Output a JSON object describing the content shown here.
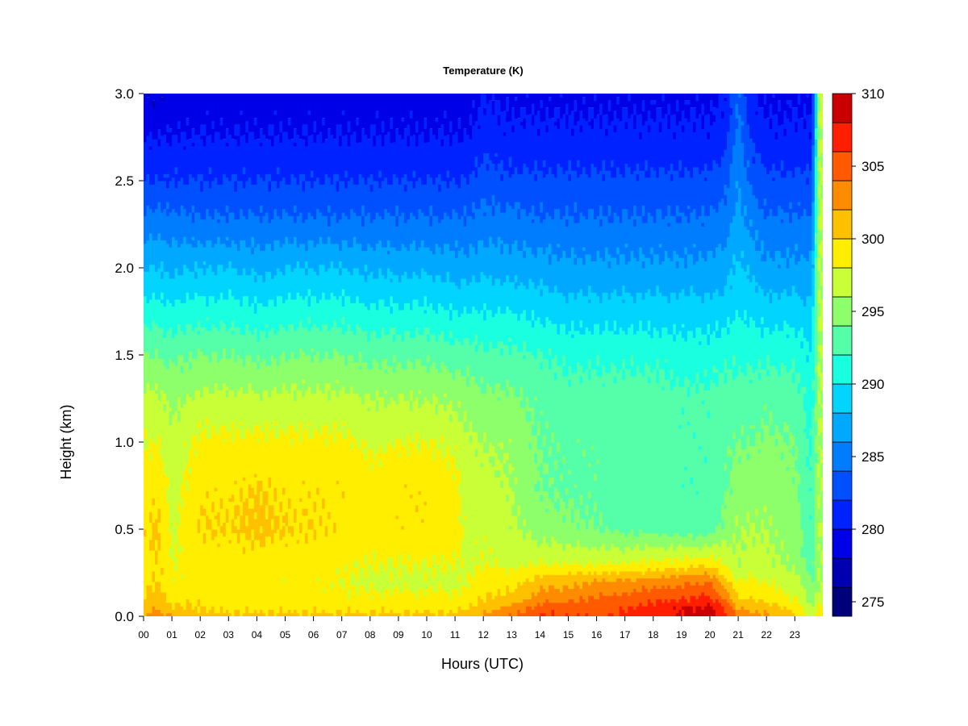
{
  "chart_data": {
    "type": "heatmap",
    "title": "Temperature (K)",
    "xlabel": "Hours (UTC)",
    "ylabel": "Height (km)",
    "x_ticks": [
      "00",
      "01",
      "02",
      "03",
      "04",
      "05",
      "06",
      "07",
      "08",
      "09",
      "10",
      "11",
      "12",
      "13",
      "14",
      "15",
      "16",
      "17",
      "18",
      "19",
      "20",
      "21",
      "22",
      "23"
    ],
    "y_ticks": [
      "0.0",
      "0.5",
      "1.0",
      "1.5",
      "2.0",
      "2.5",
      "3.0"
    ],
    "xlim": [
      0,
      24
    ],
    "ylim": [
      0,
      3.0
    ],
    "colorbar": {
      "label_values": [
        "275",
        "280",
        "285",
        "290",
        "295",
        "300",
        "305",
        "310"
      ],
      "range": [
        274,
        310
      ],
      "levels": [
        274,
        276,
        278,
        280,
        282,
        284,
        286,
        288,
        290,
        292,
        294,
        296,
        298,
        300,
        302,
        304,
        306,
        308,
        310
      ],
      "colors": [
        "#00007a",
        "#0000b0",
        "#0000e6",
        "#0022ff",
        "#0050ff",
        "#007cff",
        "#00a8ff",
        "#00d4ff",
        "#1affe0",
        "#55ffaa",
        "#8dff6a",
        "#c8ff37",
        "#ffee00",
        "#ffc000",
        "#ff8c00",
        "#ff5a00",
        "#ff1e00",
        "#c80000",
        "#7a0000"
      ]
    },
    "profile_heights_km": [
      0.0,
      0.05,
      0.1,
      0.2,
      0.3,
      0.5,
      0.75,
      1.0,
      1.25,
      1.5,
      1.75,
      2.0,
      2.25,
      2.5,
      2.75,
      3.0
    ],
    "temperature_profiles_K": [
      {
        "hour": 0.0,
        "values": [
          302,
          301,
          300,
          299.5,
          299,
          299.5,
          299,
          298,
          296.5,
          294,
          291,
          288,
          285,
          282,
          280,
          278
        ]
      },
      {
        "hour": 0.5,
        "values": [
          303,
          302,
          301,
          300,
          300,
          300.5,
          299.5,
          298,
          296.5,
          294,
          291,
          288,
          285,
          282,
          280,
          278
        ]
      },
      {
        "hour": 1.0,
        "values": [
          302,
          300.5,
          299.5,
          298.5,
          298,
          297.5,
          297,
          296.5,
          295.5,
          293.5,
          290.5,
          287.5,
          285,
          282,
          280,
          278.5
        ]
      },
      {
        "hour": 2.0,
        "values": [
          301,
          300,
          299.5,
          299,
          299,
          300,
          299.5,
          298.5,
          296.5,
          294,
          291,
          288,
          284.5,
          282,
          280,
          279
        ]
      },
      {
        "hour": 3.0,
        "values": [
          300.5,
          299.5,
          299,
          298.5,
          299,
          300,
          299.5,
          298.5,
          296.5,
          294,
          291,
          288,
          284.5,
          282,
          280,
          279
        ]
      },
      {
        "hour": 4.0,
        "values": [
          300.5,
          299.5,
          299,
          298.5,
          299,
          300.5,
          300,
          298.5,
          296.5,
          293.5,
          290.5,
          287.5,
          284.5,
          282,
          280,
          279
        ]
      },
      {
        "hour": 5.0,
        "values": [
          300.5,
          299.5,
          299,
          298.5,
          299,
          300,
          299.5,
          298.5,
          296.5,
          294,
          291,
          288,
          284.5,
          282,
          280,
          279
        ]
      },
      {
        "hour": 6.0,
        "values": [
          300.5,
          299.5,
          299,
          298.5,
          299,
          300,
          299.5,
          298.5,
          296.5,
          294,
          291,
          288,
          284.5,
          282,
          280,
          279
        ]
      },
      {
        "hour": 7.0,
        "values": [
          300.5,
          299.5,
          298.5,
          298,
          298.5,
          299.5,
          299.5,
          298.5,
          296.5,
          294,
          291,
          288,
          284.5,
          282,
          280,
          279
        ]
      },
      {
        "hour": 8.0,
        "values": [
          300.5,
          299.5,
          298.5,
          297.5,
          298,
          299,
          299,
          297.5,
          296,
          293.5,
          290.5,
          287.5,
          284.5,
          282,
          280,
          279
        ]
      },
      {
        "hour": 9.0,
        "values": [
          300.5,
          299.5,
          298.5,
          297.5,
          298,
          299.5,
          299.5,
          298,
          296,
          293.5,
          290.5,
          287.5,
          284.5,
          282,
          280,
          279
        ]
      },
      {
        "hour": 10.0,
        "values": [
          300.5,
          299.5,
          298.5,
          297.5,
          298,
          299.5,
          299.5,
          298,
          296,
          293.5,
          290.5,
          287.5,
          284.5,
          282,
          280,
          279
        ]
      },
      {
        "hour": 11.0,
        "values": [
          300.5,
          299.5,
          298.5,
          297.5,
          298,
          299,
          298.5,
          297.5,
          295.5,
          293,
          290,
          287,
          284.5,
          282,
          280,
          279
        ]
      },
      {
        "hour": 11.5,
        "values": [
          301,
          300,
          299,
          298,
          297.5,
          297,
          297,
          296.5,
          295,
          293,
          290,
          287,
          284.5,
          282,
          280,
          279
        ]
      },
      {
        "hour": 12.0,
        "values": [
          302.5,
          301,
          300,
          299,
          298,
          297.5,
          297,
          296,
          294.5,
          292.5,
          290,
          287.5,
          285,
          283,
          281,
          280
        ]
      },
      {
        "hour": 13.0,
        "values": [
          304,
          302.5,
          300.5,
          299,
          297.5,
          296.5,
          296,
          295.5,
          294.5,
          292.5,
          290,
          287,
          285,
          282.5,
          280.5,
          279.5
        ]
      },
      {
        "hour": 14.0,
        "values": [
          306,
          305,
          303,
          301,
          298,
          295,
          294,
          294,
          293.5,
          292,
          289.5,
          287,
          284.5,
          282.5,
          280.5,
          279.5
        ]
      },
      {
        "hour": 15.0,
        "values": [
          306,
          305.5,
          303.5,
          301.5,
          298,
          294.5,
          293.5,
          293.5,
          293,
          291.5,
          289,
          286.5,
          284.5,
          282.5,
          280.5,
          279.5
        ]
      },
      {
        "hour": 16.0,
        "values": [
          305.5,
          305,
          304,
          302,
          298,
          294,
          293.5,
          293.5,
          293,
          291.5,
          289,
          286.5,
          284.5,
          282.5,
          280.5,
          279.5
        ]
      },
      {
        "hour": 17.0,
        "values": [
          306.5,
          306,
          305,
          302.5,
          298,
          293.5,
          293,
          293,
          293,
          291.5,
          289,
          286.5,
          284.5,
          282.5,
          280.5,
          279.5
        ]
      },
      {
        "hour": 18.0,
        "values": [
          307,
          306.5,
          305.5,
          303,
          298.5,
          293.5,
          293,
          293,
          293,
          291.5,
          289,
          286.5,
          284.5,
          282.5,
          280.5,
          279.5
        ]
      },
      {
        "hour": 19.0,
        "values": [
          308.5,
          308,
          306,
          303.5,
          299,
          293,
          292.5,
          292.5,
          292.5,
          291,
          289,
          286.5,
          284.5,
          282.5,
          280.5,
          279.5
        ]
      },
      {
        "hour": 20.0,
        "values": [
          309,
          308.5,
          306.5,
          304,
          299.5,
          293,
          292.5,
          292.5,
          292.5,
          291,
          289,
          286.5,
          284.5,
          282.5,
          280.5,
          279.5
        ]
      },
      {
        "hour": 20.5,
        "values": [
          307,
          306,
          304,
          301,
          298,
          294.5,
          293.5,
          293.5,
          293,
          291.5,
          289,
          287,
          285,
          283,
          281,
          280
        ]
      },
      {
        "hour": 21.0,
        "values": [
          304,
          302,
          300,
          298,
          296,
          296,
          295,
          294,
          293,
          291.5,
          290,
          288.5,
          287,
          286,
          285,
          284
        ]
      },
      {
        "hour": 21.5,
        "values": [
          303,
          301.5,
          300,
          298.5,
          297,
          296,
          295,
          294,
          293,
          291.5,
          289.5,
          287.5,
          285.5,
          283.5,
          281.5,
          280
        ]
      },
      {
        "hour": 22.0,
        "values": [
          302.5,
          301,
          299.5,
          298,
          296.5,
          296,
          295.5,
          294.5,
          293.5,
          291.5,
          289,
          286.5,
          284.5,
          282.5,
          280.5,
          279.5
        ]
      },
      {
        "hour": 23.0,
        "values": [
          300.5,
          299.5,
          298,
          297,
          295.5,
          295,
          294.5,
          294,
          293,
          291.5,
          289,
          286.5,
          284.5,
          282.5,
          280.5,
          279.5
        ]
      },
      {
        "hour": 23.6,
        "values": [
          297,
          296,
          295,
          294,
          293,
          292.5,
          292,
          291.5,
          291,
          290,
          288.5,
          286.5,
          284.5,
          282.5,
          280.5,
          279.5
        ]
      },
      {
        "hour": 23.85,
        "values": [
          299,
          298,
          297,
          296,
          296,
          296,
          296,
          296,
          296,
          296,
          296,
          296,
          296,
          296,
          296,
          296
        ]
      }
    ]
  }
}
